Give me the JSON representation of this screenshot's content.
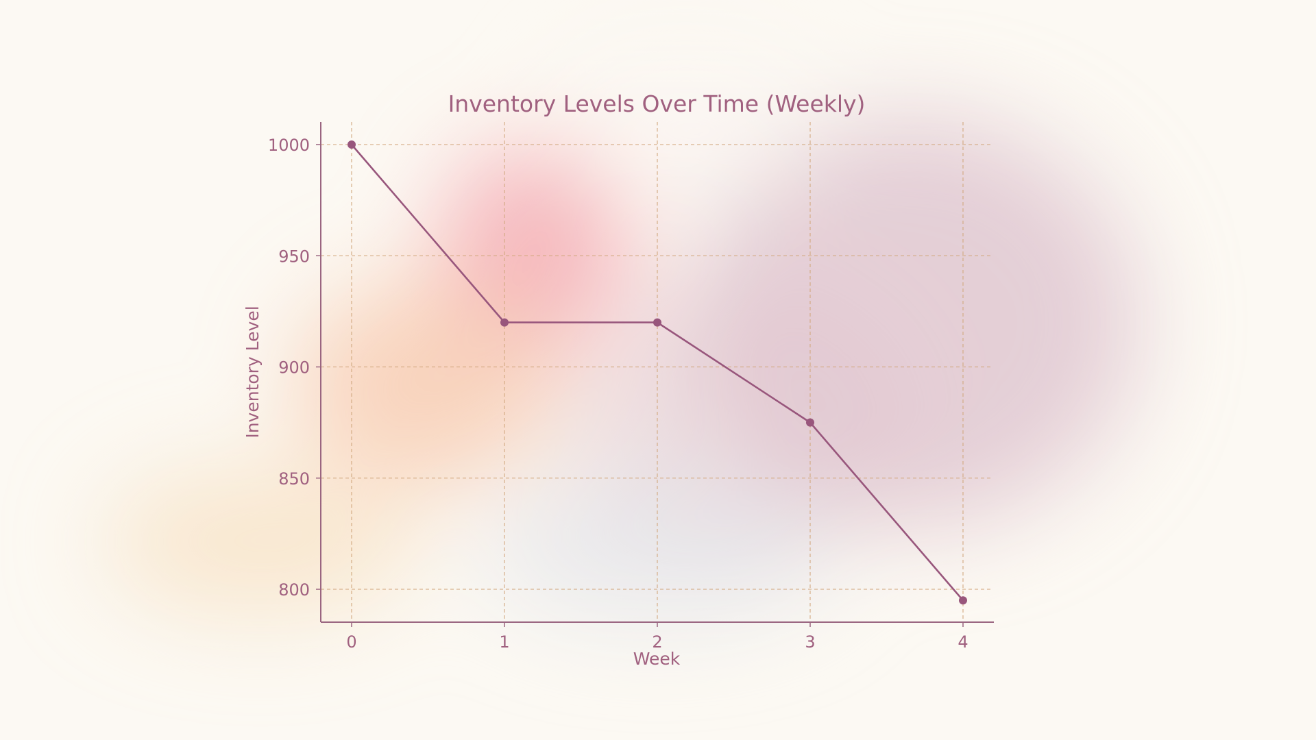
{
  "colors": {
    "background": "#fcf9f3",
    "line": "#98567c",
    "text": "#a0607f",
    "axis": "#9a6580",
    "grid": "#d2a87f"
  },
  "chart_data": {
    "type": "line",
    "title": "Inventory Levels Over Time (Weekly)",
    "xlabel": "Week",
    "ylabel": "Inventory Level",
    "x": [
      0,
      1,
      2,
      3,
      4
    ],
    "xticks": [
      "0",
      "1",
      "2",
      "3",
      "4"
    ],
    "yticks": [
      "800",
      "850",
      "900",
      "950",
      "1000"
    ],
    "series": [
      {
        "values": [
          1000,
          920,
          920,
          875,
          795
        ]
      }
    ],
    "xlim": [
      -0.2,
      4.2
    ],
    "ylim": [
      785,
      1010
    ],
    "grid": true,
    "markers": true
  }
}
